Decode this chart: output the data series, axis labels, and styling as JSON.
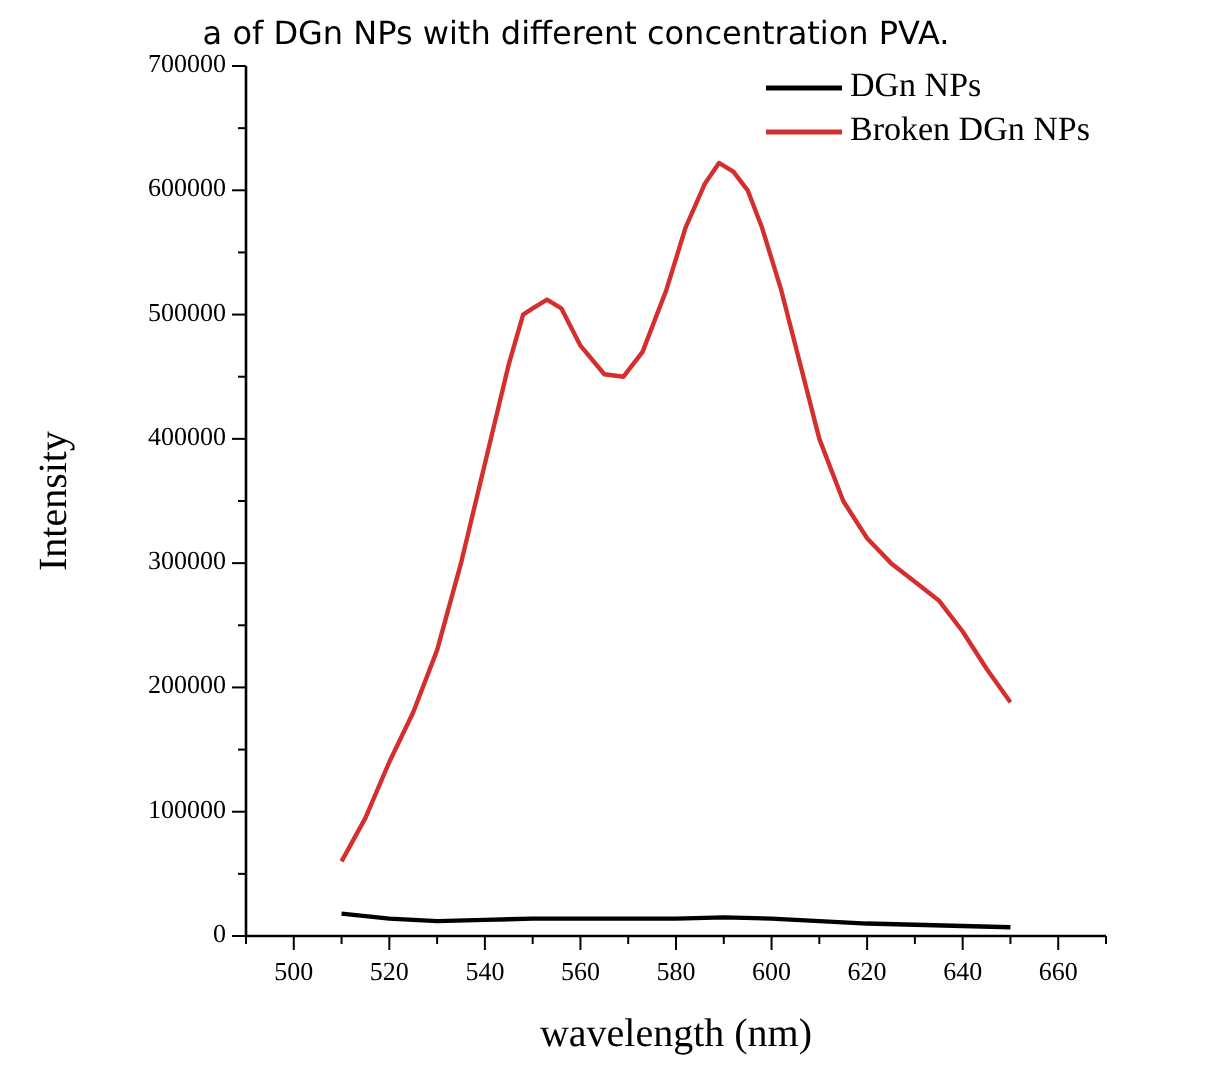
{
  "chart_data": {
    "type": "line",
    "title": "a of DGn NPs with different concentration PVA.",
    "xlabel": "wavelength (nm)",
    "ylabel": "Intensity",
    "xlim": [
      490,
      670
    ],
    "xticks": [
      {
        "value": 490,
        "label": null
      },
      500,
      {
        "value": 510,
        "label": null
      },
      520,
      {
        "value": 530,
        "label": null
      },
      540,
      {
        "value": 550,
        "label": null
      },
      560,
      {
        "value": 570,
        "label": null
      },
      580,
      {
        "value": 590,
        "label": null
      },
      600,
      {
        "value": 610,
        "label": null
      },
      620,
      {
        "value": 630,
        "label": null
      },
      640,
      {
        "value": 650,
        "label": null
      },
      660,
      {
        "value": 670,
        "label": null
      }
    ],
    "ylim": [
      0,
      700000
    ],
    "yticks": [
      0,
      {
        "value": 50000,
        "label": null
      },
      100000,
      {
        "value": 150000,
        "label": null
      },
      200000,
      {
        "value": 250000,
        "label": null
      },
      300000,
      {
        "value": 350000,
        "label": null
      },
      400000,
      {
        "value": 450000,
        "label": null
      },
      500000,
      {
        "value": 550000,
        "label": null
      },
      600000,
      {
        "value": 650000,
        "label": null
      },
      700000
    ],
    "grid": false,
    "legend": "top right",
    "marker": "none",
    "line_style": "solid",
    "series": [
      {
        "name": "DGn NPs",
        "color": "#000000",
        "x": [
          510,
          520,
          530,
          540,
          550,
          560,
          570,
          580,
          590,
          600,
          610,
          620,
          630,
          640,
          650
        ],
        "values": [
          18000,
          14000,
          12000,
          13000,
          14000,
          14000,
          14000,
          14000,
          15000,
          14000,
          12000,
          10000,
          9000,
          8000,
          7000
        ]
      },
      {
        "name": "Broken DGn NPs",
        "color": "#d32f2f",
        "x": [
          510,
          515,
          520,
          525,
          530,
          535,
          540,
          545,
          548,
          550,
          553,
          556,
          560,
          565,
          569,
          573,
          578,
          582,
          586,
          589,
          592,
          595,
          598,
          602,
          606,
          610,
          615,
          620,
          625,
          630,
          635,
          640,
          645,
          650
        ],
        "values": [
          60000,
          95000,
          140000,
          180000,
          230000,
          300000,
          380000,
          460000,
          500000,
          505000,
          512000,
          505000,
          475000,
          452000,
          450000,
          470000,
          520000,
          570000,
          605000,
          622000,
          615000,
          600000,
          570000,
          520000,
          460000,
          400000,
          350000,
          320000,
          300000,
          285000,
          270000,
          245000,
          215000,
          188000
        ]
      }
    ]
  }
}
